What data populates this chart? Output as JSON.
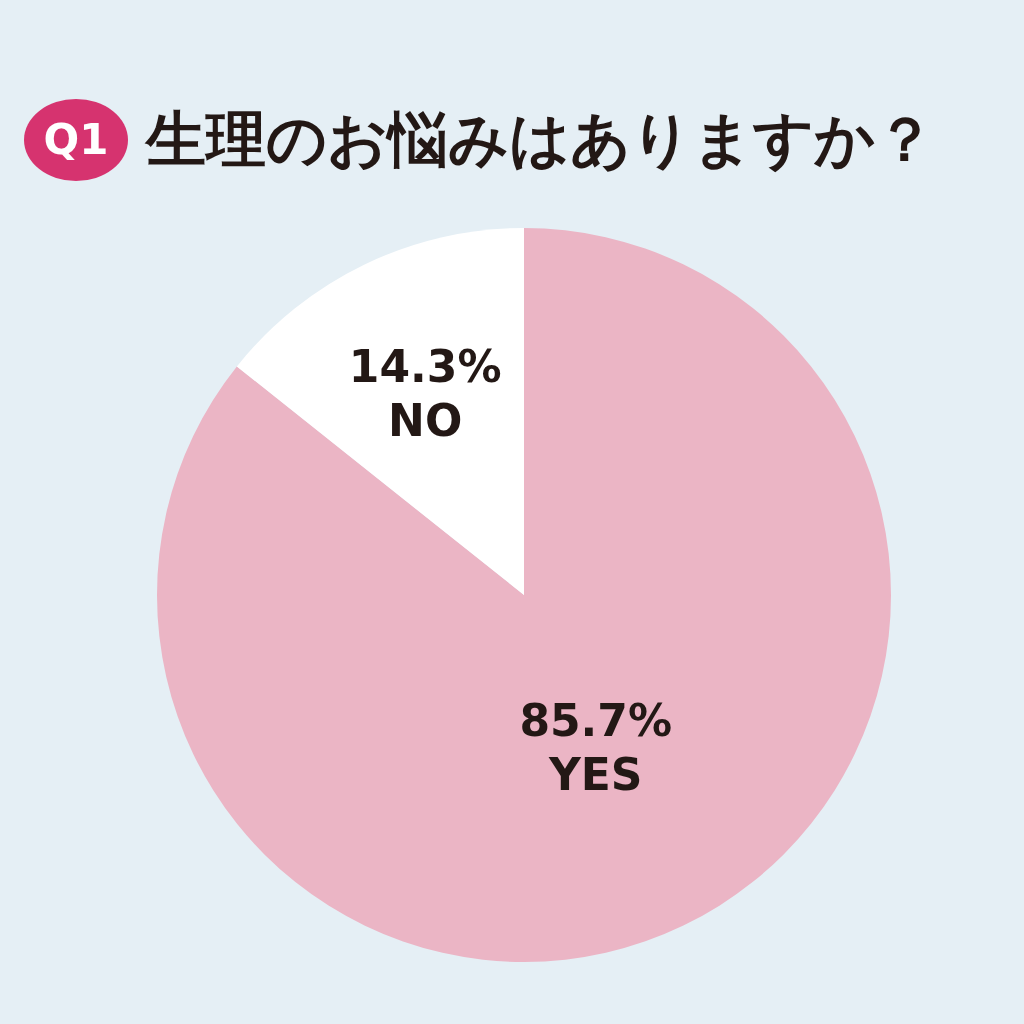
{
  "chart_data": {
    "type": "pie",
    "title": "生理のお悩みはありますか？",
    "annotations": [
      "Q1"
    ],
    "categories": [
      "YES",
      "NO"
    ],
    "values": [
      85.7,
      14.3
    ],
    "colors": [
      "#ebb5c5",
      "#ffffff"
    ],
    "value_labels": [
      "85.7%",
      "14.3%"
    ],
    "legend": false
  }
}
